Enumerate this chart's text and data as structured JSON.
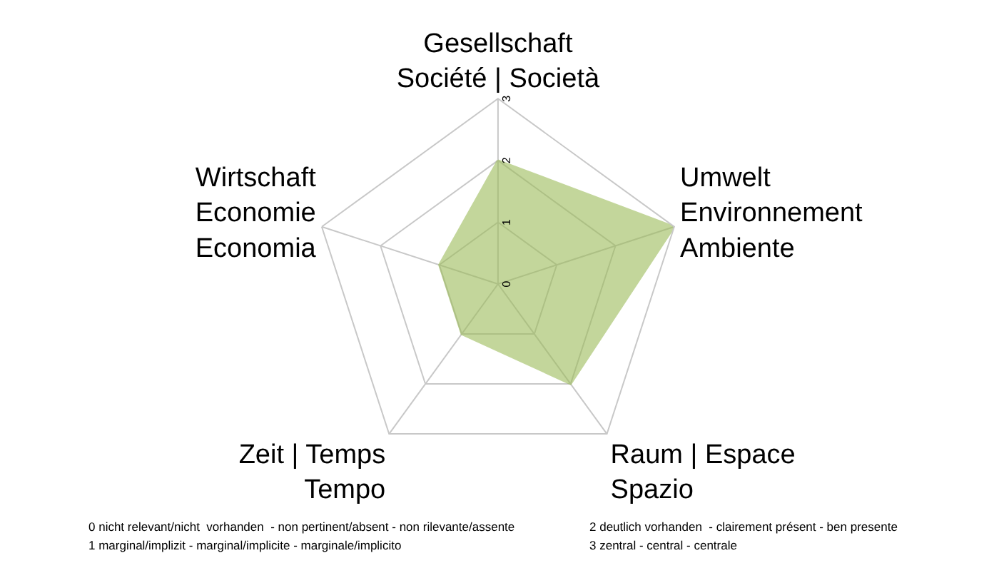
{
  "chart_data": {
    "type": "radar",
    "categories": [
      "Gesellschaft\nSociété | Società",
      "Umwelt\nEnvironnement\nAmbiente",
      "Raum | Espace\nSpazio",
      "Zeit | Temps\nTempo",
      "Wirtschaft\nEconomie\nEconomia"
    ],
    "series": [
      {
        "color": "#9bbb59",
        "values": [
          2,
          3,
          2,
          1,
          1
        ]
      }
    ],
    "ylim": [
      0,
      3
    ],
    "yticks": [
      0,
      1,
      2,
      3
    ],
    "grid": true,
    "annotations": [
      "0 nicht relevant/nicht  vorhanden  - non pertinent/absent - non rilevante/assente",
      "1 marginal/implizit - marginal/implicite - marginale/implicito",
      "2 deutlich vorhanden  - clairement présent - ben presente",
      "3 zentral - central - centrale"
    ]
  }
}
